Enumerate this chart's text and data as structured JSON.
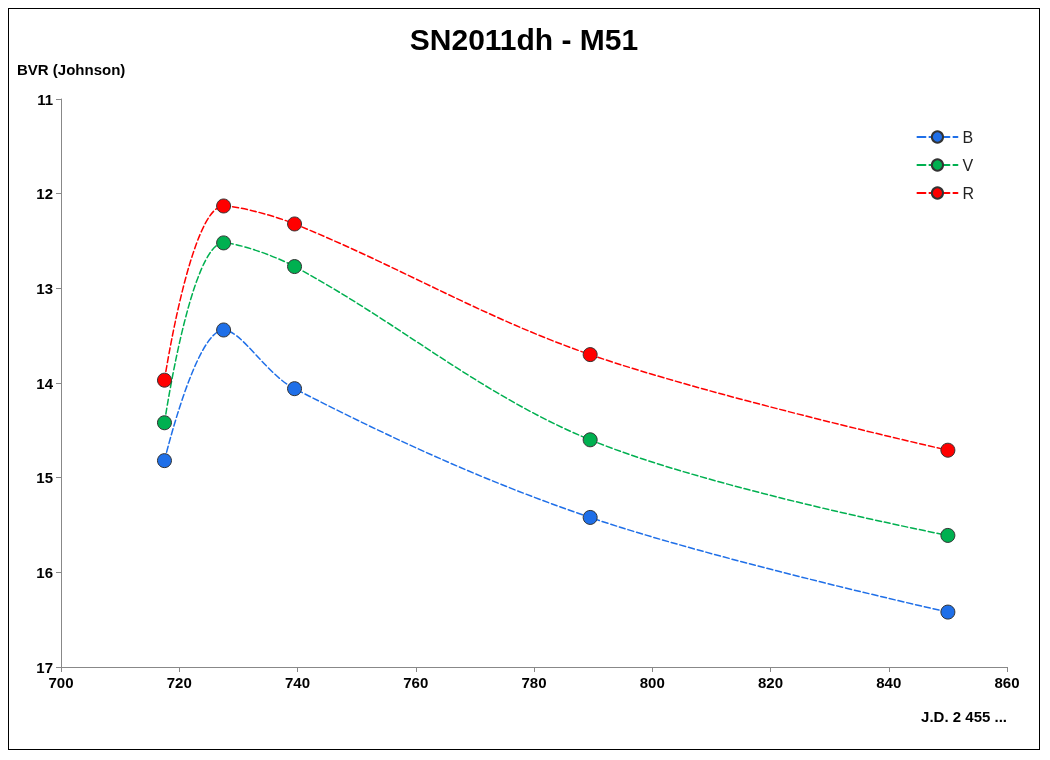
{
  "chart_data": {
    "type": "line",
    "title": "SN2011dh - M51",
    "xlabel": "J.D. 2 455 ...",
    "ylabel": "BVR (Johnson)",
    "x": [
      717.5,
      727.5,
      739.5,
      789.5,
      850
    ],
    "series": [
      {
        "name": "B",
        "color": "#1f6fe8",
        "values": [
          14.82,
          13.44,
          14.06,
          15.42,
          16.42
        ]
      },
      {
        "name": "V",
        "color": "#00b050",
        "values": [
          14.42,
          12.52,
          12.77,
          14.6,
          15.61
        ]
      },
      {
        "name": "R",
        "color": "#ff0000",
        "values": [
          13.97,
          12.13,
          12.32,
          13.7,
          14.71
        ]
      }
    ],
    "xlim": [
      700,
      860
    ],
    "xticks": [
      700,
      720,
      740,
      760,
      780,
      800,
      820,
      840,
      860
    ],
    "ylim": [
      17,
      11
    ],
    "yticks": [
      11,
      12,
      13,
      14,
      15,
      16,
      17
    ],
    "grid": false,
    "legend": "top right",
    "marker": "circle",
    "line_style": "dashed"
  }
}
